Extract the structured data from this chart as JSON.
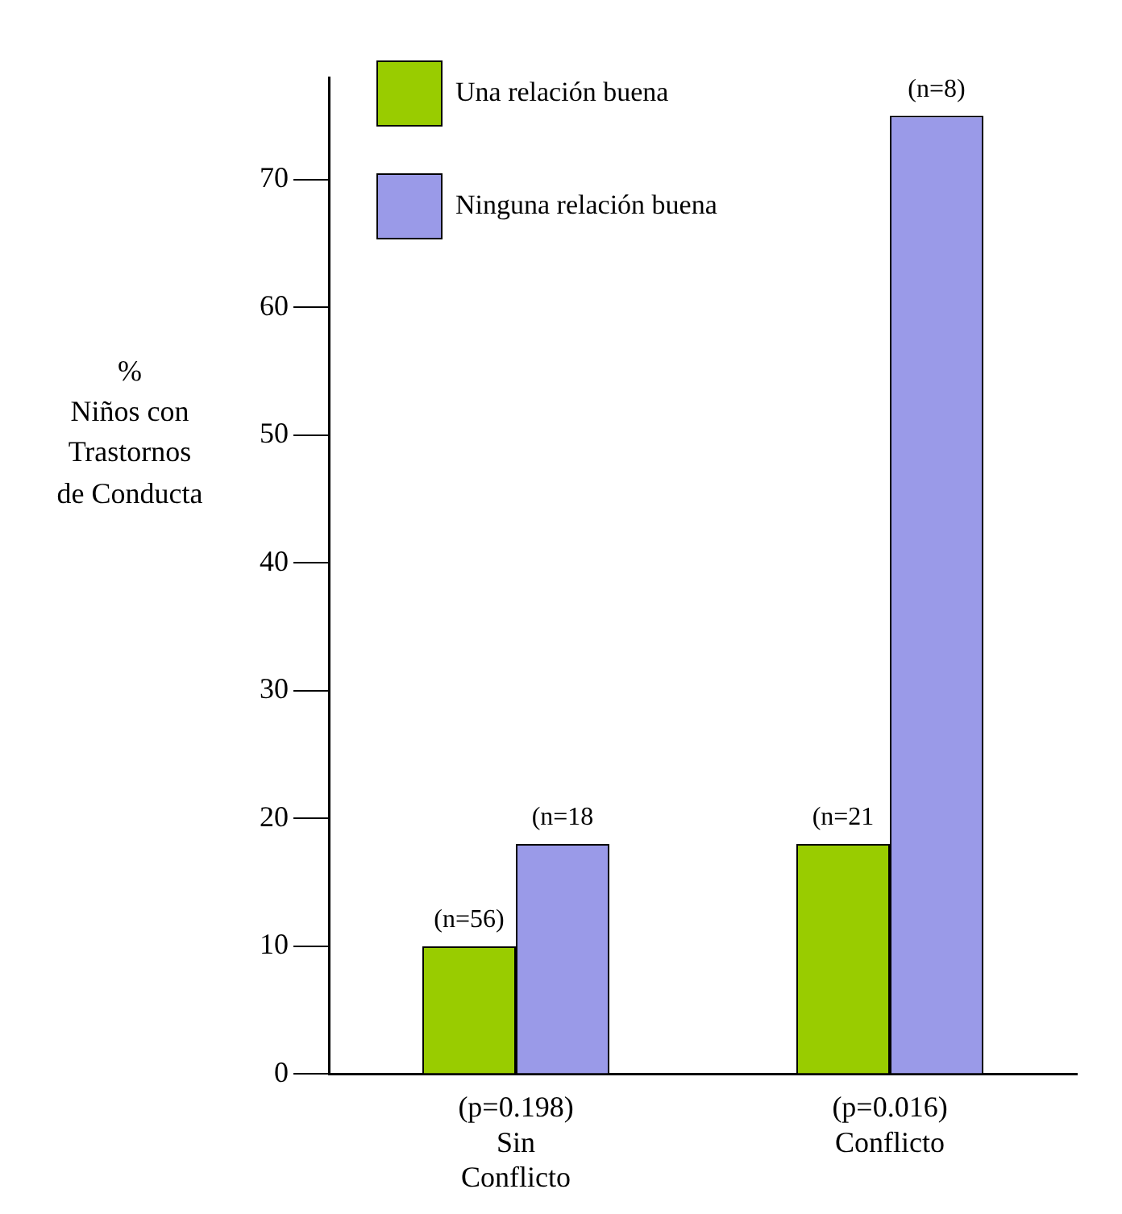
{
  "chart_data": {
    "type": "bar",
    "ylabel": "%\nNiños con\nTrastornos\nde Conducta",
    "categories": [
      "(p=0.198)\nSin\nConflicto",
      "(p=0.016)\nConflicto"
    ],
    "series": [
      {
        "name": "Una relación buena",
        "color": "#99cc00",
        "values": [
          10,
          18
        ]
      },
      {
        "name": "Ninguna relación buena",
        "color": "#9a9ae8",
        "values": [
          18,
          75
        ]
      }
    ],
    "annotations": [
      {
        "text": "(n=56)",
        "x": "(p=0.198)\nSin\nConflicto",
        "y": 10
      },
      {
        "text": "(n=18",
        "x": "(p=0.198)\nSin\nConflicto",
        "y": 18
      },
      {
        "text": "(n=21",
        "x": "(p=0.016)\nConflicto",
        "y": 18
      },
      {
        "text": "(n=8)",
        "x": "(p=0.016)\nConflicto",
        "y": 75
      }
    ],
    "ylim": [
      0,
      78
    ],
    "yticks": [
      0,
      10,
      20,
      30,
      40,
      50,
      60,
      70
    ],
    "grid": false,
    "legend": "top left"
  }
}
